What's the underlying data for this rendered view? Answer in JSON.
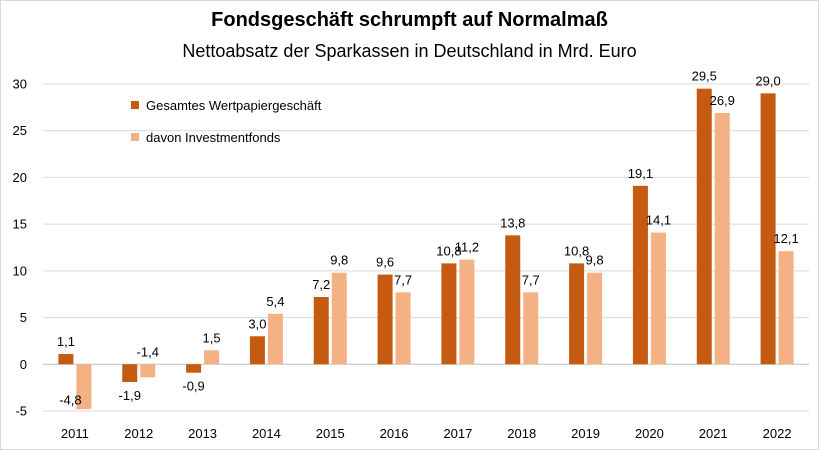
{
  "chart_data": {
    "type": "bar",
    "title": "Fondsgeschäft schrumpft auf Normalmaß",
    "subtitle": "Nettoabsatz der Sparkassen in Deutschland in Mrd. Euro",
    "categories": [
      "2011",
      "2012",
      "2013",
      "2014",
      "2015",
      "2016",
      "2017",
      "2018",
      "2019",
      "2020",
      "2021",
      "2022"
    ],
    "series": [
      {
        "name": "Gesamtes Wertpapiergeschäft",
        "color": "#c55a11",
        "values": [
          1.1,
          -1.9,
          -0.9,
          3.0,
          7.2,
          9.6,
          10.8,
          13.8,
          10.8,
          19.1,
          29.5,
          29.0
        ],
        "labels": [
          "1,1",
          "-1,9",
          "-0,9",
          "3,0",
          "7,2",
          "9,6",
          "10,8",
          "13,8",
          "10,8",
          "19,1",
          "29,5",
          "29,0"
        ]
      },
      {
        "name": "davon Investmentfonds",
        "color": "#f4b183",
        "values": [
          -4.8,
          -1.4,
          1.5,
          5.4,
          9.8,
          7.7,
          11.2,
          7.7,
          9.8,
          14.1,
          26.9,
          12.1
        ],
        "labels": [
          "-4,8",
          "-1,4",
          "1,5",
          "5,4",
          "9,8",
          "7,7",
          "11,2",
          "7,7",
          "9,8",
          "14,1",
          "26,9",
          "12,1"
        ]
      }
    ],
    "ylim": [
      -5,
      30
    ],
    "yticks": [
      -5,
      0,
      5,
      10,
      15,
      20,
      25,
      30
    ],
    "ytick_labels": [
      "-5",
      "0",
      "5",
      "10",
      "15",
      "20",
      "25",
      "30"
    ],
    "grid": true,
    "legend_position": "top-left"
  }
}
